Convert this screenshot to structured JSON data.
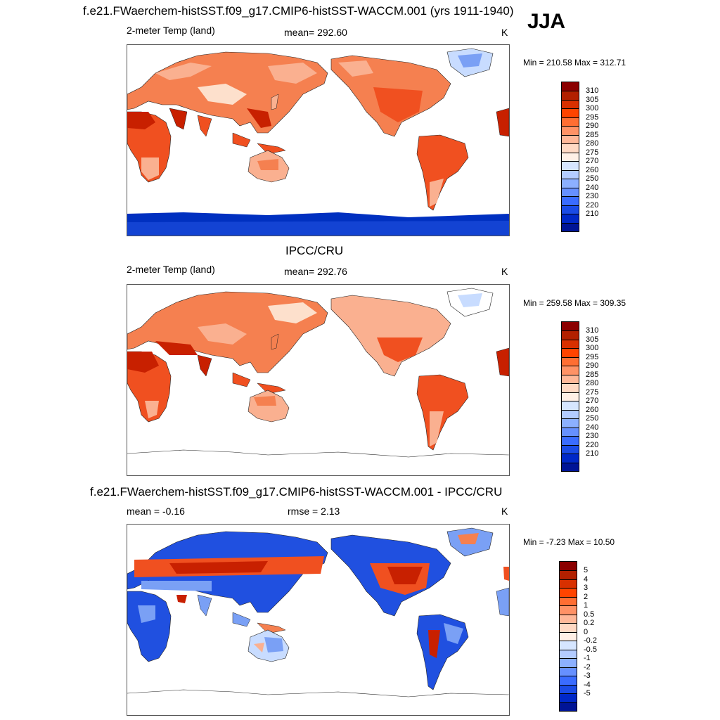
{
  "season": "JJA",
  "panels": [
    {
      "title": "f.e21.FWaerchem-histSST.f09_g17.CMIP6-histSST-WACCM.001 (yrs 1911-1940)",
      "left_label": "2-meter Temp (land)",
      "center_label": "mean= 292.60",
      "units": "K",
      "minmax": "Min = 210.58 Max = 312.71"
    },
    {
      "title": "IPCC/CRU",
      "left_label": "2-meter Temp (land)",
      "center_label": "mean= 292.76",
      "units": "K",
      "minmax": "Min = 259.58 Max = 309.35"
    },
    {
      "title": "f.e21.FWaerchem-histSST.f09_g17.CMIP6-histSST-WACCM.001 - IPCC/CRU",
      "left_label": "mean =  -0.16",
      "center_label": "rmse =   2.13",
      "units": "K",
      "minmax": "Min =  -7.23 Max =  10.50"
    }
  ],
  "colorbars": {
    "abs": {
      "labels": [
        "310",
        "305",
        "300",
        "295",
        "290",
        "285",
        "280",
        "275",
        "270",
        "260",
        "250",
        "240",
        "230",
        "220",
        "210"
      ],
      "colors": [
        "#8b0000",
        "#b22000",
        "#d83000",
        "#ff4400",
        "#ff6e33",
        "#ff9266",
        "#ffb899",
        "#ffd9c4",
        "#fff0e6",
        "#d6e6ff",
        "#b3ccff",
        "#8cb0ff",
        "#6690ff",
        "#3a6cff",
        "#1a4be6",
        "#0028c8",
        "#001496"
      ]
    },
    "diff": {
      "labels": [
        "5",
        "4",
        "3",
        "2",
        "1",
        "0.5",
        "0.2",
        "0",
        "-0.2",
        "-0.5",
        "-1",
        "-2",
        "-3",
        "-4",
        "-5"
      ],
      "colors": [
        "#8b0000",
        "#b22000",
        "#d83000",
        "#ff4400",
        "#ff6e33",
        "#ff9266",
        "#ffb899",
        "#ffd9c4",
        "#fff0e6",
        "#d6e6ff",
        "#b3ccff",
        "#8cb0ff",
        "#6690ff",
        "#3a6cff",
        "#1a4be6",
        "#0028c8",
        "#001496"
      ]
    }
  },
  "map_colors": {
    "warm_dark": "#c82000",
    "warm": "#f05020",
    "warm_mid": "#f58050",
    "warm_light": "#fab090",
    "warm_pale": "#fde0cc",
    "cool_pale": "#c8dcff",
    "cool": "#7aa0f5",
    "cool_dark": "#2050e0",
    "cool_deep": "#0030c0"
  }
}
